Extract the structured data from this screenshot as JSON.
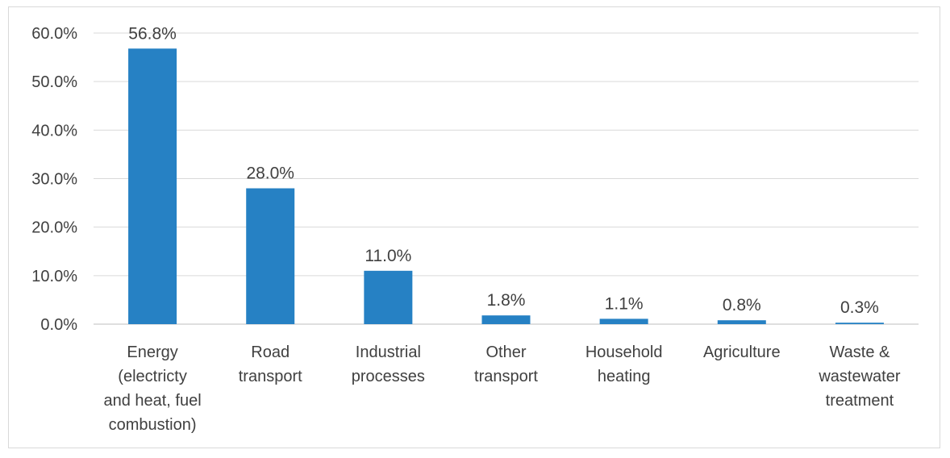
{
  "chart_data": {
    "type": "bar",
    "title": "",
    "xlabel": "",
    "ylabel": "",
    "ylim": [
      0,
      60
    ],
    "yticks": [
      "0.0%",
      "10.0%",
      "20.0%",
      "30.0%",
      "40.0%",
      "50.0%",
      "60.0%"
    ],
    "grid": true,
    "legend": "none",
    "bar_color": "#2681C4",
    "categories": [
      [
        "Energy",
        "(electricty",
        "and heat, fuel",
        "combustion)"
      ],
      [
        "Road",
        "transport"
      ],
      [
        "Industrial",
        "processes"
      ],
      [
        "Other",
        "transport"
      ],
      [
        "Household",
        "heating"
      ],
      [
        "Agriculture"
      ],
      [
        "Waste &",
        "wastewater",
        "treatment"
      ]
    ],
    "values": [
      56.8,
      28.0,
      11.0,
      1.8,
      1.1,
      0.8,
      0.3
    ],
    "data_labels": [
      "56.8%",
      "28.0%",
      "11.0%",
      "1.8%",
      "1.1%",
      "0.8%",
      "0.3%"
    ]
  }
}
